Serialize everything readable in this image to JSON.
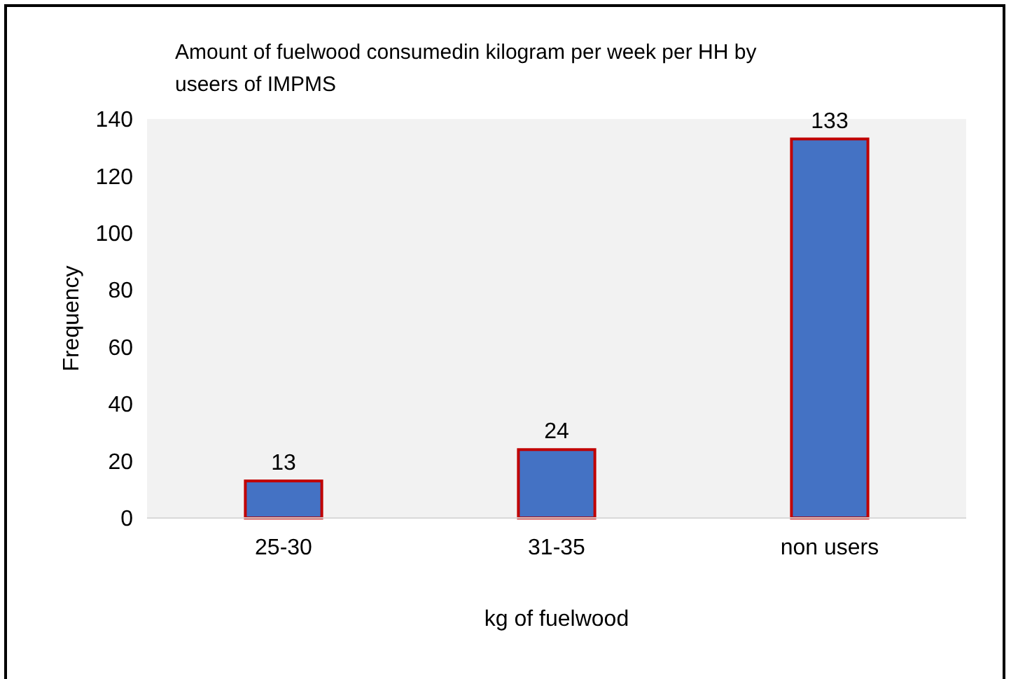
{
  "chart_data": {
    "type": "bar",
    "title": "Amount of fuelwood consumedin kilogram per week per HH by useers of IMPMS",
    "xlabel": "kg of fuelwood",
    "ylabel": "Frequency",
    "categories": [
      "25-30",
      "31-35",
      "non users"
    ],
    "values": [
      13,
      24,
      133
    ],
    "color": "#4472c4",
    "ylim": [
      0,
      140
    ],
    "yticks": [
      0,
      20,
      40,
      60,
      80,
      100,
      120,
      140
    ],
    "data_labels": true
  }
}
